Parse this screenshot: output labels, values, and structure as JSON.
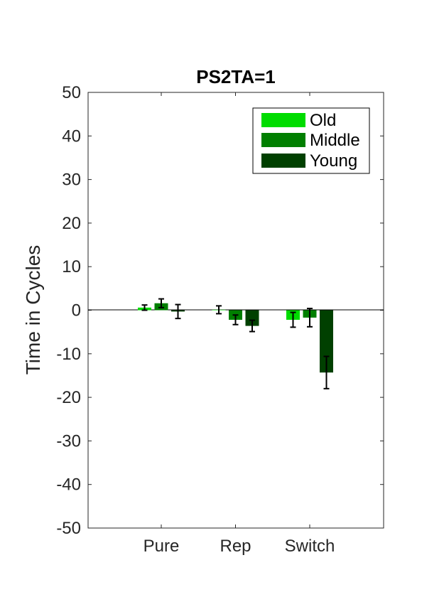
{
  "chart_data": {
    "type": "bar",
    "title": "PS2TA=1",
    "xlabel": "",
    "ylabel": "Time in Cycles",
    "ylim": [
      -50,
      50
    ],
    "yticks": [
      50,
      40,
      30,
      20,
      10,
      0,
      -10,
      -20,
      -30,
      -40,
      -50
    ],
    "categories": [
      "Pure",
      "Rep",
      "Switch"
    ],
    "series": [
      {
        "name": "Old",
        "color": "#00dc00",
        "values": [
          0.6,
          0.1,
          -2.2
        ],
        "errors": [
          0.6,
          0.9,
          1.7
        ]
      },
      {
        "name": "Middle",
        "color": "#007f00",
        "values": [
          1.6,
          -2.2,
          -1.7
        ],
        "errors": [
          1.0,
          1.1,
          2.1
        ]
      },
      {
        "name": "Young",
        "color": "#004000",
        "values": [
          -0.3,
          -3.6,
          -14.3
        ],
        "errors": [
          1.6,
          1.3,
          3.7
        ]
      }
    ],
    "legend": "top-right",
    "grid": false
  }
}
